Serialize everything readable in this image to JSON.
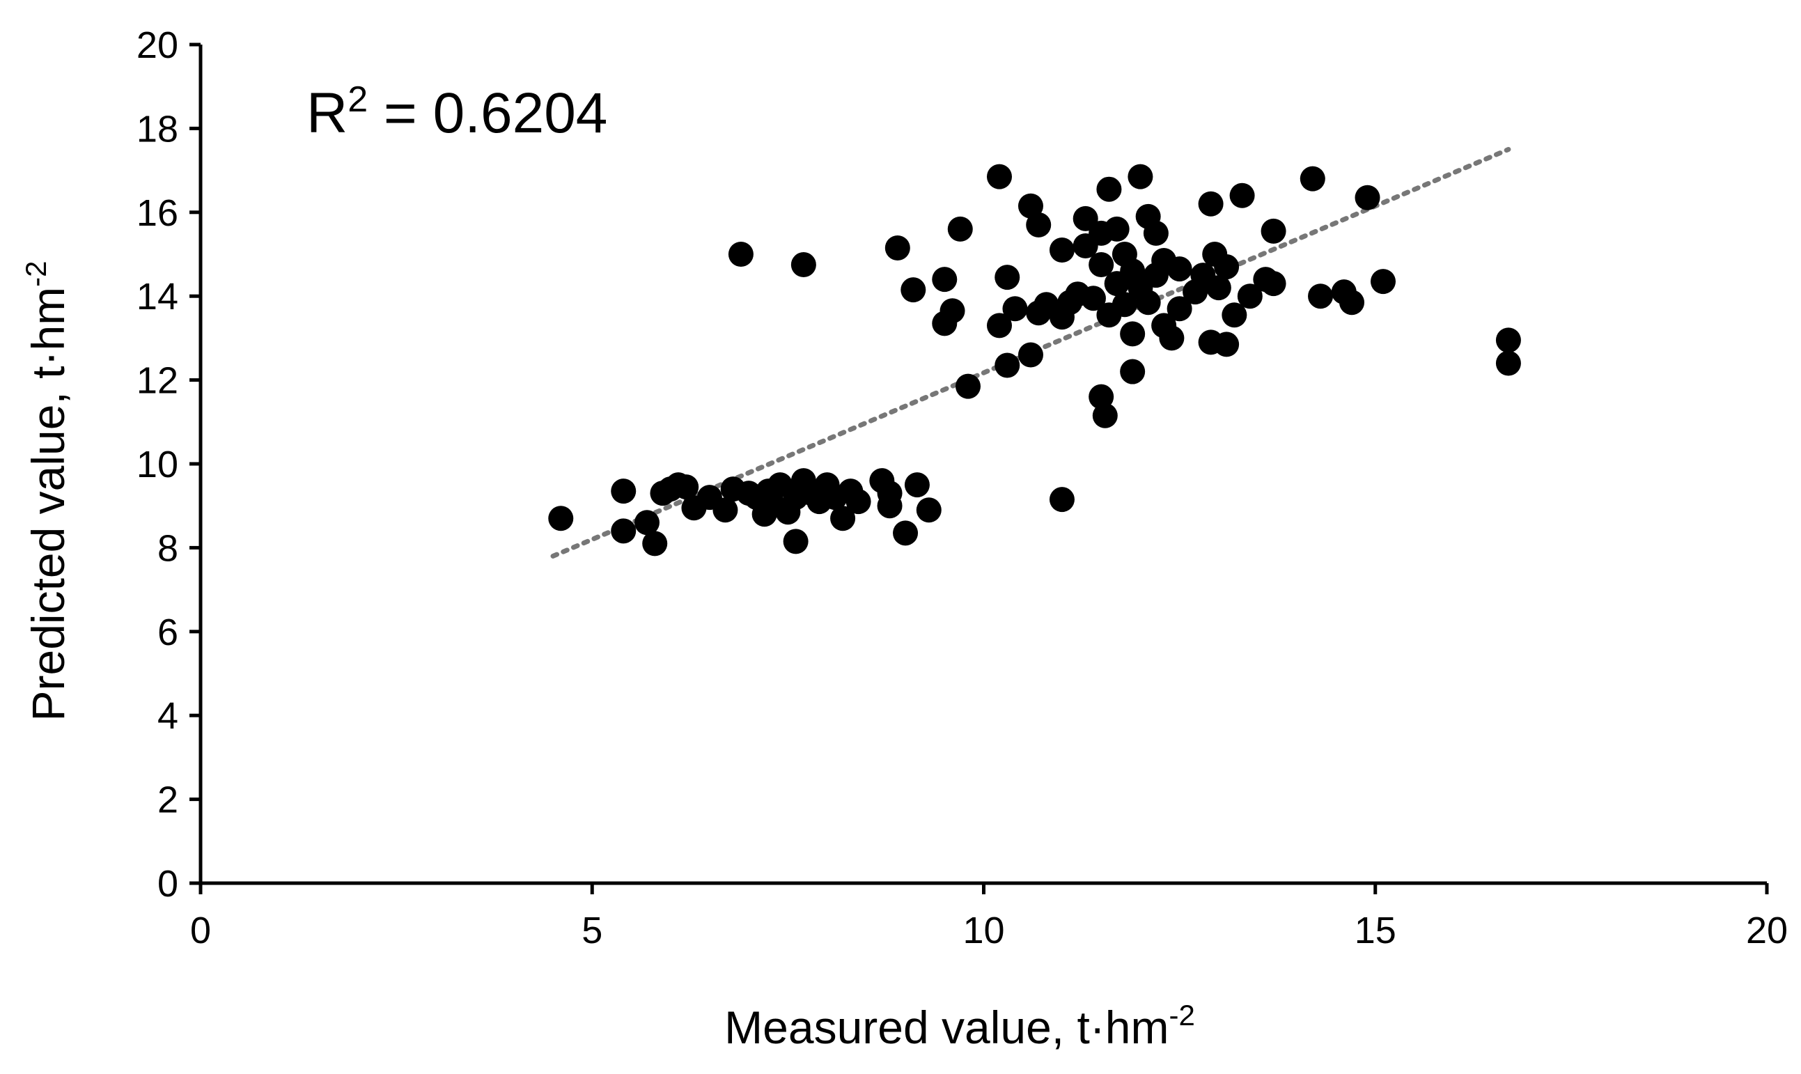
{
  "chart_data": {
    "type": "scatter",
    "xlabel_main": "Measured value, t·hm",
    "xlabel_sup": "-2",
    "ylabel_main": "Predicted value, t·hm",
    "ylabel_sup": "-2",
    "annotation_main": "R",
    "annotation_sup": "2",
    "annotation_rest": " = 0.6204",
    "xlim": [
      0,
      20
    ],
    "ylim": [
      0,
      20
    ],
    "x_ticks": [
      0,
      5,
      10,
      15,
      20
    ],
    "y_ticks": [
      0,
      2,
      4,
      6,
      8,
      10,
      12,
      14,
      16,
      18,
      20
    ],
    "grid": false,
    "legend": "none",
    "marker_color": "#000000",
    "trendline": {
      "style": "dotted",
      "color": "#777777",
      "x_start": 4.5,
      "y_start": 7.8,
      "x_end": 16.7,
      "y_end": 17.5
    },
    "points": [
      {
        "x": 4.6,
        "y": 8.7
      },
      {
        "x": 5.4,
        "y": 9.35
      },
      {
        "x": 5.4,
        "y": 8.4
      },
      {
        "x": 5.7,
        "y": 8.6
      },
      {
        "x": 5.8,
        "y": 8.1
      },
      {
        "x": 5.9,
        "y": 9.3
      },
      {
        "x": 6.0,
        "y": 9.4
      },
      {
        "x": 6.1,
        "y": 9.5
      },
      {
        "x": 6.2,
        "y": 9.45
      },
      {
        "x": 6.3,
        "y": 8.95
      },
      {
        "x": 6.5,
        "y": 9.2
      },
      {
        "x": 6.7,
        "y": 8.9
      },
      {
        "x": 6.8,
        "y": 9.4
      },
      {
        "x": 6.9,
        "y": 15.0
      },
      {
        "x": 7.0,
        "y": 9.3
      },
      {
        "x": 7.1,
        "y": 9.2
      },
      {
        "x": 7.2,
        "y": 8.8
      },
      {
        "x": 7.25,
        "y": 9.35
      },
      {
        "x": 7.3,
        "y": 9.05
      },
      {
        "x": 7.4,
        "y": 9.5
      },
      {
        "x": 7.5,
        "y": 8.85
      },
      {
        "x": 7.6,
        "y": 9.2
      },
      {
        "x": 7.6,
        "y": 8.15
      },
      {
        "x": 7.7,
        "y": 14.75
      },
      {
        "x": 7.7,
        "y": 9.6
      },
      {
        "x": 7.8,
        "y": 9.3
      },
      {
        "x": 7.9,
        "y": 9.1
      },
      {
        "x": 8.0,
        "y": 9.5
      },
      {
        "x": 8.1,
        "y": 9.2
      },
      {
        "x": 8.2,
        "y": 8.7
      },
      {
        "x": 8.3,
        "y": 9.35
      },
      {
        "x": 8.4,
        "y": 9.1
      },
      {
        "x": 8.7,
        "y": 9.6
      },
      {
        "x": 8.8,
        "y": 9.0
      },
      {
        "x": 8.8,
        "y": 9.3
      },
      {
        "x": 8.9,
        "y": 15.15
      },
      {
        "x": 9.0,
        "y": 8.35
      },
      {
        "x": 9.1,
        "y": 14.15
      },
      {
        "x": 9.15,
        "y": 9.5
      },
      {
        "x": 9.3,
        "y": 8.9
      },
      {
        "x": 9.5,
        "y": 14.4
      },
      {
        "x": 9.5,
        "y": 13.35
      },
      {
        "x": 9.6,
        "y": 13.65
      },
      {
        "x": 9.7,
        "y": 15.6
      },
      {
        "x": 9.8,
        "y": 11.85
      },
      {
        "x": 10.2,
        "y": 16.85
      },
      {
        "x": 10.2,
        "y": 13.3
      },
      {
        "x": 10.3,
        "y": 14.45
      },
      {
        "x": 10.3,
        "y": 12.35
      },
      {
        "x": 10.4,
        "y": 13.7
      },
      {
        "x": 10.6,
        "y": 16.15
      },
      {
        "x": 10.6,
        "y": 12.6
      },
      {
        "x": 10.7,
        "y": 15.7
      },
      {
        "x": 10.7,
        "y": 13.6
      },
      {
        "x": 10.8,
        "y": 13.8
      },
      {
        "x": 11.0,
        "y": 15.1
      },
      {
        "x": 11.0,
        "y": 13.5
      },
      {
        "x": 11.0,
        "y": 9.15
      },
      {
        "x": 11.1,
        "y": 13.85
      },
      {
        "x": 11.2,
        "y": 14.05
      },
      {
        "x": 11.3,
        "y": 15.85
      },
      {
        "x": 11.3,
        "y": 15.2
      },
      {
        "x": 11.4,
        "y": 13.95
      },
      {
        "x": 11.5,
        "y": 15.5
      },
      {
        "x": 11.5,
        "y": 14.75
      },
      {
        "x": 11.5,
        "y": 11.6
      },
      {
        "x": 11.55,
        "y": 11.15
      },
      {
        "x": 11.6,
        "y": 16.55
      },
      {
        "x": 11.6,
        "y": 13.55
      },
      {
        "x": 11.7,
        "y": 15.6
      },
      {
        "x": 11.7,
        "y": 14.3
      },
      {
        "x": 11.8,
        "y": 15.0
      },
      {
        "x": 11.8,
        "y": 13.8
      },
      {
        "x": 11.9,
        "y": 14.6
      },
      {
        "x": 11.9,
        "y": 13.1
      },
      {
        "x": 11.9,
        "y": 12.2
      },
      {
        "x": 12.0,
        "y": 16.85
      },
      {
        "x": 12.0,
        "y": 14.2
      },
      {
        "x": 12.1,
        "y": 15.9
      },
      {
        "x": 12.1,
        "y": 13.85
      },
      {
        "x": 12.2,
        "y": 15.5
      },
      {
        "x": 12.2,
        "y": 14.5
      },
      {
        "x": 12.3,
        "y": 14.85
      },
      {
        "x": 12.3,
        "y": 13.3
      },
      {
        "x": 12.4,
        "y": 13.0
      },
      {
        "x": 12.5,
        "y": 14.65
      },
      {
        "x": 12.5,
        "y": 13.7
      },
      {
        "x": 12.7,
        "y": 14.1
      },
      {
        "x": 12.8,
        "y": 14.5
      },
      {
        "x": 12.9,
        "y": 16.2
      },
      {
        "x": 12.9,
        "y": 12.9
      },
      {
        "x": 12.95,
        "y": 15.0
      },
      {
        "x": 13.0,
        "y": 14.2
      },
      {
        "x": 13.1,
        "y": 12.85
      },
      {
        "x": 13.1,
        "y": 14.7
      },
      {
        "x": 13.2,
        "y": 13.55
      },
      {
        "x": 13.3,
        "y": 16.4
      },
      {
        "x": 13.4,
        "y": 14.0
      },
      {
        "x": 13.6,
        "y": 14.4
      },
      {
        "x": 13.7,
        "y": 15.55
      },
      {
        "x": 13.7,
        "y": 14.3
      },
      {
        "x": 14.2,
        "y": 16.8
      },
      {
        "x": 14.3,
        "y": 14.0
      },
      {
        "x": 14.6,
        "y": 14.1
      },
      {
        "x": 14.7,
        "y": 13.85
      },
      {
        "x": 14.9,
        "y": 16.35
      },
      {
        "x": 15.1,
        "y": 14.35
      },
      {
        "x": 16.7,
        "y": 12.95
      },
      {
        "x": 16.7,
        "y": 12.4
      }
    ]
  }
}
